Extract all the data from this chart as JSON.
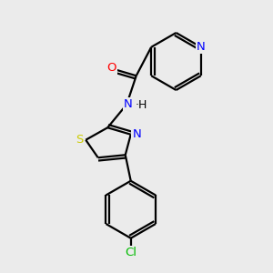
{
  "background_color": "#ebebeb",
  "atom_colors": {
    "N": "#0000FF",
    "O": "#FF0000",
    "S": "#CCCC00",
    "Cl": "#00BB00",
    "C": "#000000"
  },
  "bond_lw": 1.6,
  "font_size": 9.5
}
